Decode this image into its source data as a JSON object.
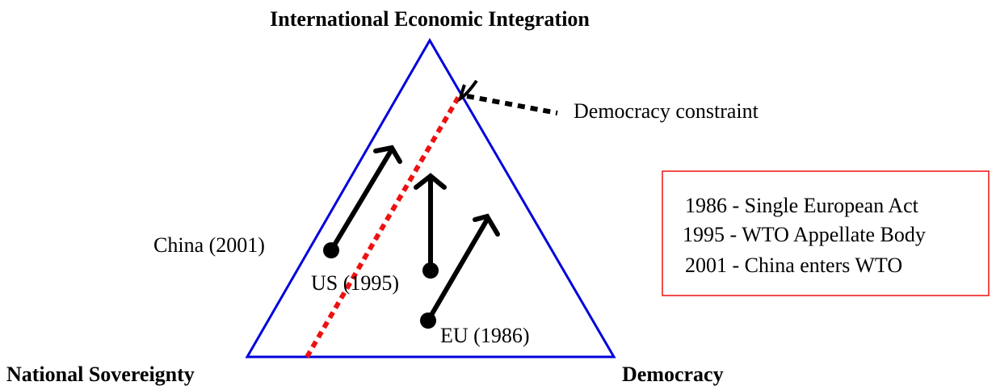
{
  "corners": {
    "top": "International Economic Integration",
    "left": "National Sovereignty",
    "right": "Democracy"
  },
  "constraint_label": "Democracy constraint",
  "points": [
    {
      "label": "China (2001)"
    },
    {
      "label": "US (1995)"
    },
    {
      "label": "EU (1986)"
    }
  ],
  "legend": [
    "1986 - Single European Act",
    "1995 - WTO Appellate Body",
    "2001 - China enters WTO"
  ]
}
